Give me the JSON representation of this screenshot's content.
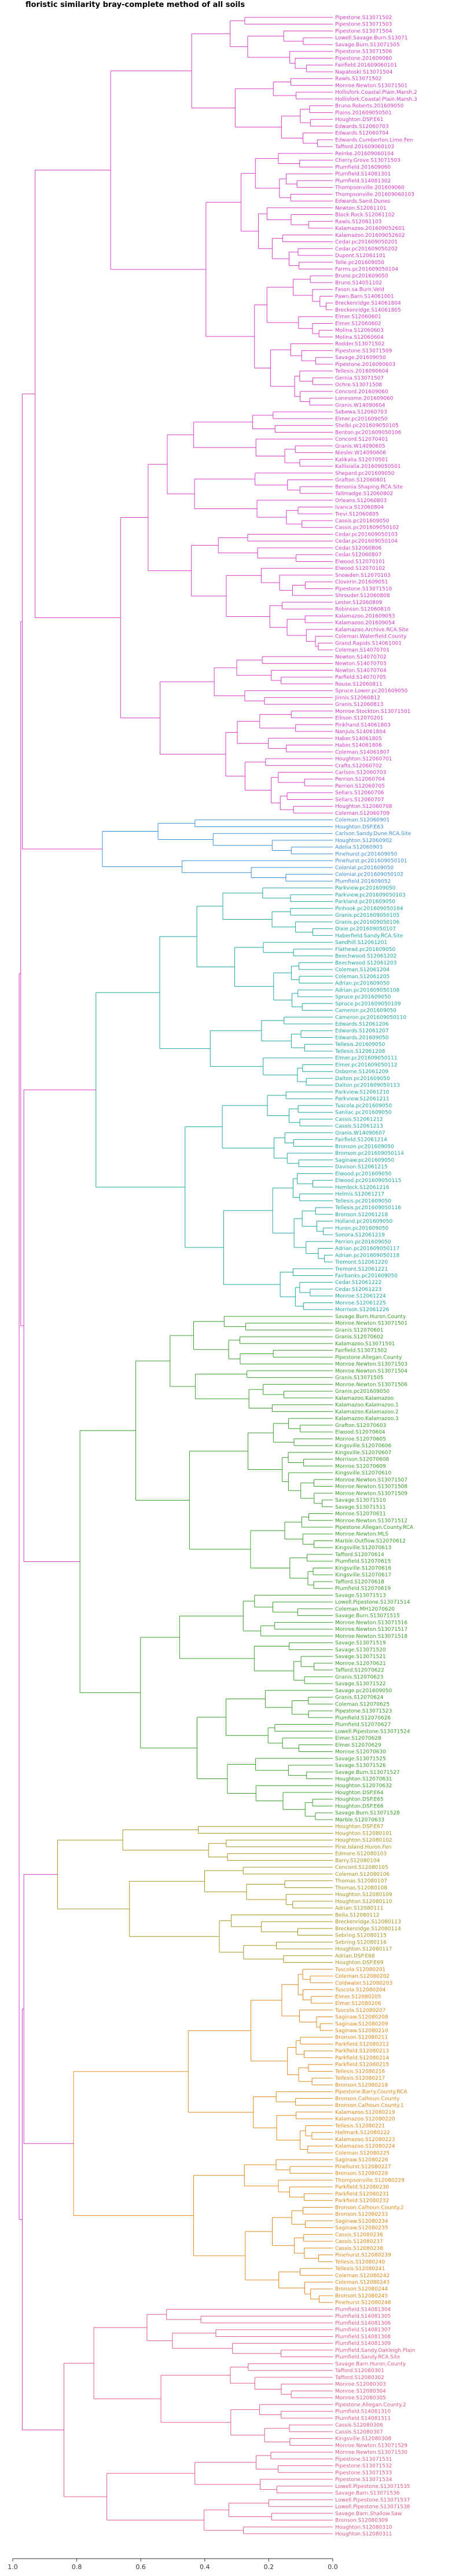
{
  "chart_data": {
    "type": "dendrogram",
    "title": "floristic similarity bray-complete method of all soils",
    "xlabel": "",
    "ylabel": "",
    "axis": {
      "orientation": "reversed",
      "range": [
        1.0,
        0.0
      ],
      "ticks": [
        1.0,
        0.8,
        0.6,
        0.4,
        0.2,
        0.0
      ],
      "tick_labels": [
        "1.0",
        "0.8",
        "0.6",
        "0.4",
        "0.2",
        "0.0"
      ]
    },
    "grid": false,
    "root_height": 0.98,
    "clusters": [
      {
        "name": "magenta",
        "color": "#d63cc8",
        "merge_height": 0.93,
        "leaves": [
          "Pipestone.S13071502",
          "Pipestone.S13071503",
          "Pipestone.S13071504",
          "Lowell.Savage.Burn.S13071",
          "Savage.Burn.S13071505",
          "Pipestone.S13071506",
          "Pipestone.201609060",
          "Fairfield.201609060101",
          "Napatoski.S13071504",
          "Rawls.S13071502",
          "Monroe.Newton.S13071501",
          "Hollisfork.Coastal.Plain.Marsh.2",
          "Hollisfork.Coastal.Plain.Marsh.3",
          "Bruno.Roberts.201609050",
          "Plains.201609050501",
          "Houghton.DSP.E61",
          "Edwards.S12060703",
          "Edwards.S12060704",
          "Edwards.Cumberton.Lime.Fen",
          "Tafford.201609060103",
          "Reinke.201609060104",
          "Cherry.Grove.S13071503",
          "Plumfield.201609060",
          "Plumfield.S14081301",
          "Plumfield.S14081302",
          "Thompsonville.201609060",
          "Thompsonville.201609060103",
          "Edwards.Sand.Dunes",
          "Newton.S12061101",
          "Black.Rock.S12061102",
          "Rawls.S12061103",
          "Kalamazoo.201609052601",
          "Kalamazoo.201609052602",
          "Cedar.pc201609050201",
          "Cedar.pc201609050202",
          "Dupont.S12061101",
          "Tolle.pc201609050",
          "Farms.pc201609050104",
          "Bruno.pc201609050",
          "Bruno.S14051102",
          "Fason.sa.Burn.Veld",
          "Pawn.Barn.S14061001",
          "Breckenridge.S14061804",
          "Breckenridge.S14061805",
          "Elmer.S12060601",
          "Elmer.S12060602",
          "Molina.S12060603",
          "Molina.S12060604",
          "Rodder.S13071502",
          "Pipestone.S13071509",
          "Savage.201609050",
          "Pipestone.2016090603",
          "Tellesis.2016090604",
          "Gernia.S13071507",
          "Ochre.S13071508",
          "Concord.201609060",
          "Lonesome.201609060",
          "Granis.W14090604",
          "Sebewa.S12060703",
          "Elmer.pc201609050",
          "Shelbi.pc201609050105",
          "Benton.pc201609050106",
          "Concord.S12070401",
          "Granis.W14090605",
          "Niesler.W14090606",
          "Kalikalia.S12070501",
          "Kallisialia.201609050501",
          "Shepard.pc201609050",
          "Grafton.S12060801",
          "Benonia.Shaping.RCA.Site",
          "Tallmadge.S12060802",
          "Orleans.S12060803",
          "Ivanca.S12060804",
          "Trevi.S12060805",
          "Cassis.pc201609050",
          "Cassis.pc201609050102",
          "Cedar.pc201609050103",
          "Cedar.pc201609050104",
          "Cedar.S12060806",
          "Cedar.S12060807",
          "Elwood.S12070101",
          "Elwood.S12070102",
          "Snowden.S12070103",
          "Cloverin.201609051",
          "Pipestone.S13071510",
          "Shrouder.S12060808",
          "Lester.S12060809",
          "Robinson.S12060810",
          "Kalamazoo.201609053",
          "Kalamazoo.201609054",
          "Kalamazoo.Archive.RCA.Site",
          "Coleman.Waterfield.County",
          "Grand.Rapids.S14061001",
          "Coleman.S14070701",
          "Newton.S14070702",
          "Newton.S14070703",
          "Newton.S14070704",
          "Parfield.S14070705",
          "Rouse.S12060811",
          "Spruce.Lower.pc201609050",
          "Jinnis.S12060812",
          "Granis.S12060813",
          "Monroe.Stockton.S13071501",
          "Ellison.S12070201",
          "Pinkhand.S14061803",
          "Nanjuis.S14061804",
          "Haber.S14061805",
          "Haber.S14061806",
          "Coleman.S14061807",
          "Houghton.S12060701",
          "Crafts.S12060702",
          "Carlson.S12060703",
          "Perrion.S12060704",
          "Perrion.S12060705",
          "Sellars.S12060706",
          "Sellars.S12060707",
          "Houghton.S12060708",
          "Coleman.S12060709"
        ]
      },
      {
        "name": "blue",
        "color": "#3c8fd6",
        "merge_height": 0.72,
        "leaves": [
          "Coleman.S12060901",
          "Houghton.DSP.E63",
          "Carlson.Sandy.Dune.RCA.Site",
          "Houghton.S12060902",
          "Adelia.S12060903",
          "Pinehurst.pc201609050",
          "Pinehurst.pc201609050101",
          "Colonial.pc201609050",
          "Colonial.pc201609050102",
          "Plumfield.201609052"
        ]
      },
      {
        "name": "teal",
        "color": "#1fa8a0",
        "merge_height": 0.74,
        "leaves": [
          "Parkview.pc201609050",
          "Parkview.pc201609050103",
          "Parkland.pc201609050",
          "Pinhook.pc201609050104",
          "Granis.pc201609050105",
          "Granis.pc201609050106",
          "Dixie.pc201609050107",
          "Haberfield.Sandy.RCA.Site",
          "Sandhill.S12061201",
          "Flathead.pc201609050",
          "Beechwood.S12061202",
          "Beechwood.S12061203",
          "Coleman.S12061204",
          "Coleman.S12061205",
          "Adrian.pc201609050",
          "Adrian.pc201609050108",
          "Spruce.pc201609050",
          "Spruce.pc201609050109",
          "Cameron.pc201609050",
          "Cameron.pc201609050110",
          "Edwards.S12061206",
          "Edwards.S12061207",
          "Edwards.201609050",
          "Tellesis.201609050",
          "Tellesis.S12061208",
          "Elmer.pc201609050111",
          "Elmer.pc201609050112",
          "Osborne.S12061209",
          "Dalton.pc201609050",
          "Dalton.pc201609050113",
          "Parkview.S12061210",
          "Parkview.S12061211",
          "Tuscola.pc201609050",
          "Sanilac.pc201609050",
          "Cassis.S12061212",
          "Cassis.S12061213",
          "Granis.W14090607",
          "Fairfield.S12061214",
          "Bronson.pc201609050",
          "Bronson.pc201609050114",
          "Saginaw.pc201609050",
          "Davison.S12061215",
          "Elwood.pc201609050",
          "Elwood.pc201609050115",
          "Hemlock.S12061216",
          "Helmis.S12061217",
          "Tellesis.pc201609050",
          "Tellesis.pc201609050116",
          "Bronson.S12061218",
          "Holland.pc201609050",
          "Huron.pc201609050",
          "Sonora.S12061219",
          "Perrion.pc201609050",
          "Adrian.pc201609050117",
          "Adrian.pc201609050118",
          "Tremont.S12061220",
          "Tremont.S12061221",
          "Fairbanks.pc201609050",
          "Cedar.S12061222",
          "Cedar.S12061223",
          "Monroe.S12061224",
          "Monroe.S12061225",
          "Morrison.S12061226"
        ]
      },
      {
        "name": "green",
        "color": "#3aa02b",
        "merge_height": 0.79,
        "leaves": [
          "Savage.Burn.Huron.County",
          "Monroe.Newton.S13071501",
          "Granis.S12070601",
          "Granis.S12070602",
          "Kalamazoo.S13071501",
          "Fairfield.S13071502",
          "Pipestone.Allegan.County",
          "Monroe.Newton.S13071503",
          "Monroe.Newton.S13071504",
          "Granis.S13071505",
          "Monroe.Newton.S13071506",
          "Granis.pc201609050",
          "Kalamazoo.Kalamazoo",
          "Kalamazoo.Kalamazoo.1",
          "Kalamazoo.Kalamazoo.2",
          "Kalamazoo.Kalamazoo.3",
          "Grafton.S12070603",
          "Elwood.S12070604",
          "Monroe.S12070605",
          "Kingsville.S12070606",
          "Kingsville.S12070607",
          "Morrison.S12070608",
          "Monroe.S12070609",
          "Kingsville.S12070610",
          "Monroe.Newton.S13071507",
          "Monroe.Newton.S13071508",
          "Monroe.Newton.S13071509",
          "Savage.S13071510",
          "Savage.S13071511",
          "Monroe.S12070611",
          "Monroe.Newton.S13071512",
          "Pipestone.Allegan.County.RCA",
          "Monroe.Newton.MLS",
          "Marble.Outflow.S12070612",
          "Kingsville.S12070613",
          "Tafford.S12070614",
          "Plumfield.S12070615",
          "Kingsville.S12070616",
          "Kingsville.S12070617",
          "Tafford.S12070618",
          "Plumfield.S12070619",
          "Savage.S13071513",
          "Lowell.Pipestone.S13071514",
          "Coleman.MH12070620",
          "Savage.Burn.S13071515",
          "Monroe.Newton.S13071516",
          "Monroe.Newton.S13071517",
          "Monroe.Newton.S13071518",
          "Savage.S13071519",
          "Savage.S13071520",
          "Savage.S13071521",
          "Monroe.S12070621",
          "Tafford.S12070622",
          "Granis.S12070623",
          "Savage.S13071522",
          "Savage.pc201609050",
          "Granis.S12070624",
          "Coleman.S12070625",
          "Pipestone.S13071523",
          "Plumfield.S12070626",
          "Plumfield.S12070627",
          "Lowell.Pipestone.S13071524",
          "Elmer.S12070628",
          "Elmer.S12070629",
          "Monroe.S12070630",
          "Savage.S13071525",
          "Savage.S13071526",
          "Savage.Burn.S13071527",
          "Houghton.S12070631",
          "Houghton.S12070632",
          "Houghton.DSP.E64",
          "Houghton.DSP.E65",
          "Houghton.DSP.E66",
          "Savage.Burn.S13071528",
          "Marble.S12070633"
        ]
      },
      {
        "name": "olive",
        "color": "#a8951f",
        "merge_height": 0.86,
        "leaves": [
          "Houghton.DSP.E67",
          "Houghton.S12080101",
          "Houghton.S12080102",
          "Pine.Island.Huron.Fen",
          "Edmore.S12080103",
          "Barry.S12080104",
          "Concord.S12080105",
          "Coleman.S12080106",
          "Thomas.S12080107",
          "Thomas.S12080108",
          "Houghton.S12080109",
          "Houghton.S12080110",
          "Adrian.S12080111",
          "Bella.S12080112",
          "Breckenridge.S12080113",
          "Breckenridge.S12080114",
          "Sebring.S12080115",
          "Sebring.S12080116",
          "Houghton.S12080117",
          "Adrian.DSP.E68",
          "Houghton.DSP.E69"
        ]
      },
      {
        "name": "orange",
        "color": "#e0891a",
        "merge_height": 0.81,
        "leaves": [
          "Tuscola.S12080201",
          "Coleman.S12080202",
          "Coldwater.S12080203",
          "Tuscola.S12080204",
          "Elmer.S12080205",
          "Elmer.S12080206",
          "Tuscola.S12080207",
          "Saginaw.S12080208",
          "Saginaw.S12080209",
          "Saginaw.S12080210",
          "Bronson.S12080211",
          "Parkfield.S12080212",
          "Parkfield.S12080213",
          "Parkfield.S12080214",
          "Parkfield.S12080215",
          "Tellesis.S12080216",
          "Tellesis.S12080217",
          "Bronson.S12080218",
          "Pipestone.Barry.County.RCA",
          "Bronson.Calhoun.County",
          "Bronson.Calhoun.County.1",
          "Kalamazoo.S12080219",
          "Kalamazoo.S12080220",
          "Tellesis.S12080221",
          "Hallmark.S12080222",
          "Kalamazoo.S12080223",
          "Kalamazoo.S12080224",
          "Coleman.S12080225",
          "Saginaw.S12080226",
          "Pinehurst.S12080227",
          "Bronson.S12080228",
          "Thompsonville.S12080229",
          "Parkfield.S12080230",
          "Parkfield.S12080231",
          "Parkfield.S12080232",
          "Bronson.Calhoun.County.2",
          "Bronson.S12080233",
          "Saginaw.S12080234",
          "Saginaw.S12080235",
          "Cassis.S12080236",
          "Cassis.S12080237",
          "Cassis.S12080238",
          "Pinehurst.S12080239",
          "Tellesis.S12080240",
          "Tellesis.S12080241",
          "Coleman.S12080242",
          "Coleman.S12080243",
          "Bronson.S12080244",
          "Bronson.S12080245",
          "Pinehurst.S12080246"
        ]
      },
      {
        "name": "pink",
        "color": "#e05a8a",
        "merge_height": 0.84,
        "leaves": [
          "Plumfield.S14081304",
          "Plumfield.S14081305",
          "Plumfield.S14081306",
          "Plumfield.S14081307",
          "Plumfield.S14081308",
          "Plumfield.S14081309",
          "Plumfield.Sandy.Oakleigh.Plain",
          "Plumfield.Sandy.RCA.Site",
          "Savage.Barn.Huron.County",
          "Tafford.S12080301",
          "Tafford.S12080302",
          "Monroe.S12080303",
          "Monroe.S12080304",
          "Monroe.S12080305",
          "Pipestone.Allegan.County.2",
          "Plumfield.S14081310",
          "Plumfield.S14081311",
          "Cassis.S12080306",
          "Cassis.S12080307",
          "Kingsville.S12080308",
          "Monroe.Newton.S13071529",
          "Monroe.Newton.S13071530",
          "Pipestone.S13071531",
          "Pipestone.S13071532",
          "Pipestone.S13071533",
          "Pipestone.S13071534",
          "Lowell.Pipestone.S13071535",
          "Savage.Barn.S13071536",
          "Lowell.Pipestone.S13071537",
          "Lowell.Pipestone.S13071538",
          "Savage.Barn.Shallow.Saw",
          "Bronson.S12080309",
          "Houghton.S12080310",
          "Houghton.S12080311"
        ]
      }
    ]
  }
}
